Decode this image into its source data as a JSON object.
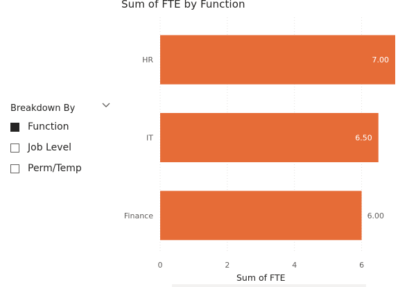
{
  "slicer": {
    "title": "Breakdown By",
    "items": [
      {
        "label": "Function",
        "checked": true
      },
      {
        "label": "Job Level",
        "checked": false
      },
      {
        "label": "Perm/Temp",
        "checked": false
      }
    ]
  },
  "colors": {
    "bar": "#E66C37",
    "text": "#252423",
    "tick": "#605E5C",
    "grid": "#E1DFDD"
  },
  "chart_data": {
    "type": "bar",
    "orientation": "horizontal",
    "title": "Sum of FTE by Function",
    "xlabel": "Sum of FTE",
    "ylabel": "",
    "categories": [
      "HR",
      "IT",
      "Finance"
    ],
    "values": [
      7.0,
      6.5,
      6.0
    ],
    "data_labels": [
      "7.00",
      "6.50",
      "6.00"
    ],
    "xlim": [
      0,
      7
    ],
    "x_ticks": [
      0,
      2,
      4,
      6
    ],
    "grid": true,
    "legend": "none"
  }
}
